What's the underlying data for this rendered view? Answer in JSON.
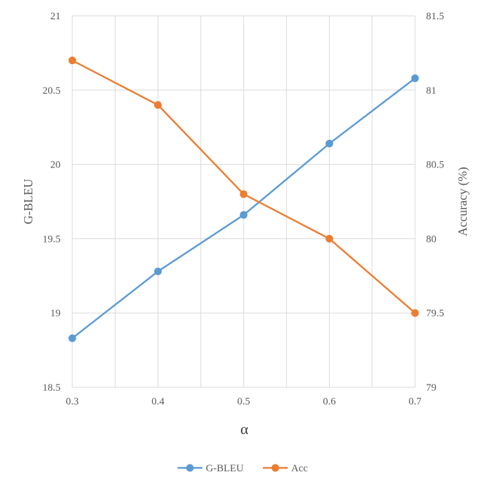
{
  "chart_data": {
    "type": "line",
    "x": [
      0.3,
      0.4,
      0.5,
      0.6,
      0.7
    ],
    "x_tick_labels": [
      "0.3",
      "0.4",
      "0.5",
      "0.6",
      "0.7"
    ],
    "xlabel": "α",
    "xlim": [
      0.3,
      0.7
    ],
    "y_left": {
      "label": "G-BLEU",
      "lim": [
        18.5,
        21
      ],
      "tick_labels": [
        "18.5",
        "19",
        "19.5",
        "20",
        "20.5",
        "21"
      ]
    },
    "y_right": {
      "label": "Accuracy (%)",
      "lim": [
        79,
        81.5
      ],
      "tick_labels": [
        "79",
        "79.5",
        "80",
        "80.5",
        "81",
        "81.5"
      ]
    },
    "series": [
      {
        "name": "G-BLEU",
        "axis": "left",
        "color": "#5B9BD5",
        "values": [
          18.83,
          19.28,
          19.66,
          20.14,
          20.58
        ]
      },
      {
        "name": "Acc",
        "axis": "right",
        "color": "#ED7D31",
        "values": [
          81.2,
          80.9,
          80.3,
          80.0,
          79.5
        ]
      }
    ],
    "grid": true,
    "legend_position": "bottom"
  }
}
